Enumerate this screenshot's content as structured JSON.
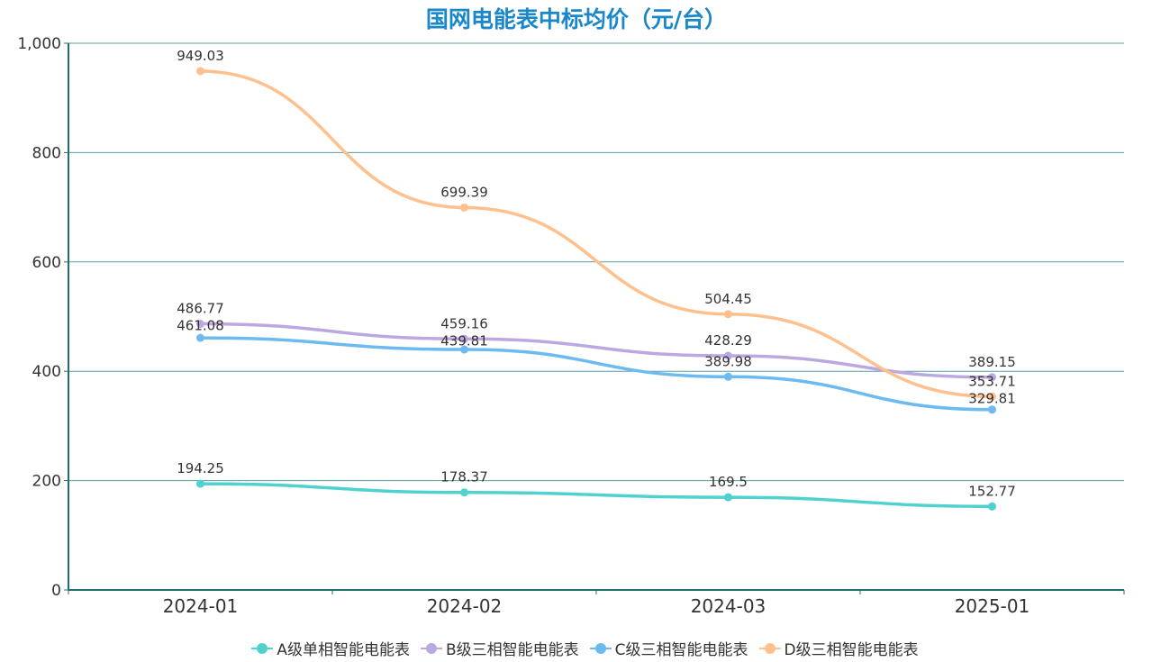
{
  "chart_data": {
    "type": "line",
    "title": "国网电能表中标均价（元/台）",
    "categories": [
      "2024-01",
      "2024-02",
      "2024-03",
      "2025-01"
    ],
    "ylim": [
      0,
      1000
    ],
    "yticks": [
      "0",
      "200",
      "400",
      "600",
      "800",
      "1,000"
    ],
    "grid": true,
    "legend": "bottom",
    "series": [
      {
        "name": "A级单相智能电能表",
        "color": "#4fd2cf",
        "values": [
          194.25,
          178.37,
          169.5,
          152.77
        ]
      },
      {
        "name": "B级三相智能电能表",
        "color": "#bba8e0",
        "values": [
          486.77,
          459.16,
          428.29,
          389.15
        ]
      },
      {
        "name": "C级三相智能电能表",
        "color": "#6cbaf0",
        "values": [
          461.08,
          439.81,
          389.98,
          329.81
        ]
      },
      {
        "name": "D级三相智能电能表",
        "color": "#ffc08e",
        "values": [
          949.03,
          699.39,
          504.45,
          353.71
        ]
      }
    ]
  }
}
